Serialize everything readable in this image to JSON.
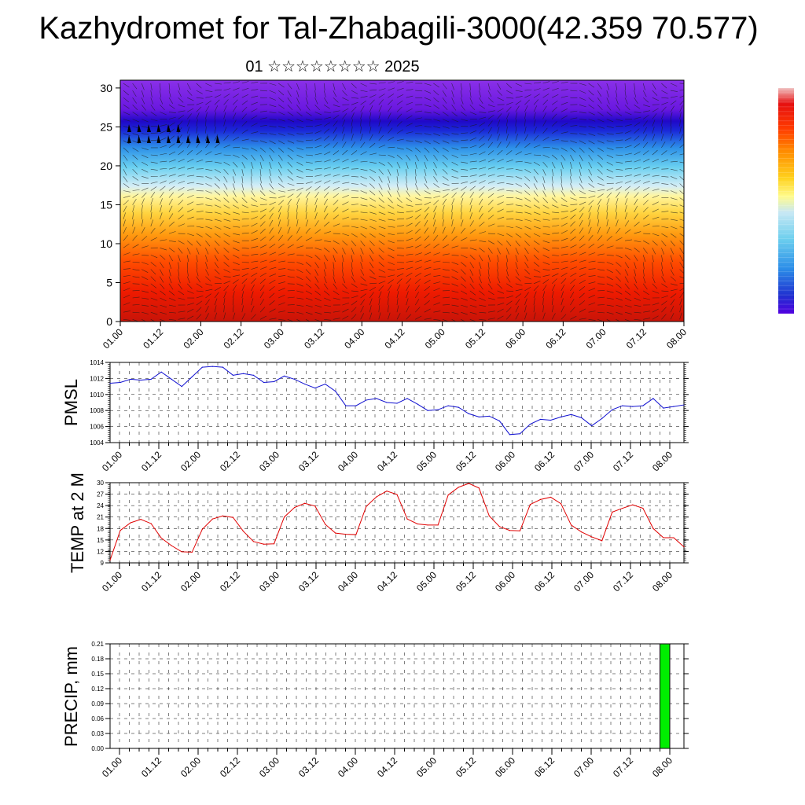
{
  "title": "Kazhydromet for Tal-Zhabagili-3000(42.359 70.577)",
  "subtitle": "01 ☆☆☆☆☆☆☆☆ 2025",
  "time_ticks": [
    "01.00",
    "01.12",
    "02.00",
    "02.12",
    "03.00",
    "03.12",
    "04.00",
    "04.12",
    "05.00",
    "05.12",
    "06.00",
    "06.12",
    "07.00",
    "07.12",
    "08.00"
  ],
  "colors": {
    "pmsl_line": "#1010d0",
    "temp_line": "#e00000",
    "precip_bar": "#00ee00",
    "colorbar": [
      "#ffffff",
      "#e61010",
      "#ff3b00",
      "#ff8c00",
      "#ffd21e",
      "#fffb8c",
      "#c8e8f4",
      "#6ccfee",
      "#2c8ee8",
      "#2030d0",
      "#5000e0",
      "#8a2ae6"
    ]
  },
  "chart_data": [
    {
      "type": "heatmap",
      "name_key": "cross-section",
      "ylim": [
        0,
        31
      ],
      "yticks": [
        0,
        5,
        10,
        15,
        20,
        25,
        30
      ],
      "x_categories": [
        "01.00",
        "01.12",
        "02.00",
        "02.12",
        "03.00",
        "03.12",
        "04.00",
        "04.12",
        "05.00",
        "05.12",
        "06.00",
        "06.12",
        "07.00",
        "07.12",
        "08.00"
      ],
      "description_levels": "temperature-colored vertical cross-section with wind barbs",
      "colorbar": true
    },
    {
      "type": "line",
      "ylabel": "PMSL",
      "ylim": [
        1004,
        1014
      ],
      "yticks": [
        1004,
        1006,
        1008,
        1010,
        1012,
        1014
      ],
      "x": [
        0,
        3,
        6,
        9,
        12,
        15,
        18,
        21,
        24,
        27,
        30,
        33,
        36,
        39,
        42,
        45,
        48,
        51,
        54,
        57,
        60,
        63,
        66,
        69,
        72,
        75,
        78,
        81,
        84,
        87,
        90,
        93,
        96,
        99,
        102,
        105,
        108,
        111,
        114,
        117,
        120,
        123,
        126,
        129,
        132,
        135,
        138,
        141,
        144,
        147,
        150,
        153,
        156,
        159,
        162,
        165,
        168
      ],
      "values": [
        1011.4,
        1011.5,
        1011.9,
        1011.8,
        1011.9,
        1012.8,
        1011.9,
        1011.0,
        1012.2,
        1013.4,
        1013.5,
        1013.4,
        1012.4,
        1012.6,
        1012.4,
        1011.5,
        1011.6,
        1012.3,
        1011.9,
        1011.3,
        1010.8,
        1011.3,
        1010.4,
        1008.6,
        1008.6,
        1009.3,
        1009.5,
        1009.0,
        1008.9,
        1009.5,
        1008.8,
        1008.0,
        1008.1,
        1008.6,
        1008.4,
        1007.6,
        1007.2,
        1007.3,
        1006.7,
        1005.0,
        1005.1,
        1006.3,
        1006.9,
        1006.8,
        1007.2,
        1007.5,
        1007.1,
        1006.1,
        1007.0,
        1008.1,
        1008.6,
        1008.5,
        1008.6,
        1009.5,
        1008.3,
        1008.5,
        1008.7
      ]
    },
    {
      "type": "line",
      "ylabel": "TEMP at 2 M",
      "ylim": [
        9,
        30
      ],
      "yticks": [
        9,
        12,
        15,
        18,
        21,
        24,
        27,
        30
      ],
      "x": [
        0,
        3,
        6,
        9,
        12,
        15,
        18,
        21,
        24,
        27,
        30,
        33,
        36,
        39,
        42,
        45,
        48,
        51,
        54,
        57,
        60,
        63,
        66,
        69,
        72,
        75,
        78,
        81,
        84,
        87,
        90,
        93,
        96,
        99,
        102,
        105,
        108,
        111,
        114,
        117,
        120,
        123,
        126,
        129,
        132,
        135,
        138,
        141,
        144,
        147,
        150,
        153,
        156,
        159,
        162,
        165,
        168
      ],
      "values": [
        9.7,
        17.5,
        19.5,
        20.4,
        19.3,
        15.5,
        13.5,
        11.9,
        11.8,
        17.8,
        20.5,
        21.3,
        20.9,
        17.3,
        14.6,
        13.9,
        14.0,
        21.0,
        23.5,
        24.6,
        23.9,
        19.1,
        16.8,
        16.5,
        16.4,
        23.8,
        26.3,
        27.8,
        26.9,
        20.5,
        19.2,
        18.9,
        18.9,
        26.8,
        28.8,
        29.8,
        28.6,
        21.3,
        18.5,
        17.5,
        17.4,
        24.3,
        25.6,
        26.2,
        24.5,
        18.9,
        17.1,
        15.8,
        14.8,
        22.3,
        23.3,
        24.2,
        23.3,
        18.0,
        15.6,
        15.6,
        13.2
      ]
    },
    {
      "type": "bar",
      "ylabel": "PRECIP, mm",
      "ylim": [
        0,
        0.21
      ],
      "yticks": [
        "0.00",
        "0.03",
        "0.06",
        "0.09",
        "0.12",
        "0.15",
        "0.18",
        "0.21"
      ],
      "bars": [
        {
          "x": 166.5,
          "width": 3,
          "value": 0.21
        }
      ]
    }
  ]
}
